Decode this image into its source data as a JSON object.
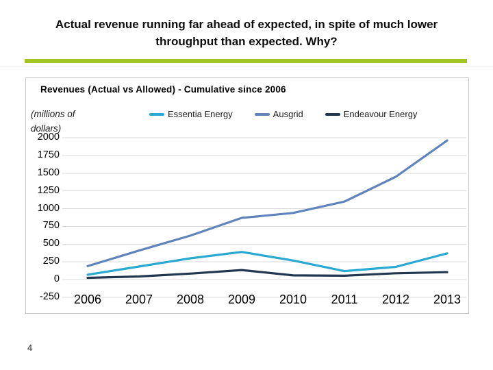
{
  "slide": {
    "title_line1": "Actual revenue running far ahead of expected, in spite of much lower",
    "title_line2": "throughput than expected. Why?",
    "accent_color": "#a4c424",
    "page_number": "4"
  },
  "chart": {
    "title": "Revenues (Actual  vs Allowed) - Cumulative since 2006",
    "unit_label_line1": "(millions of",
    "unit_label_line2": "dollars)",
    "gridline_color": "#d9d9d9",
    "border_color": "#c9c7c7"
  },
  "chart_data": {
    "type": "line",
    "title": "Revenues (Actual vs Allowed) - Cumulative since 2006",
    "ylabel": "(millions of dollars)",
    "categories": [
      "2006",
      "2007",
      "2008",
      "2009",
      "2010",
      "2011",
      "2012",
      "2013"
    ],
    "series": [
      {
        "name": "Essentia  Energy",
        "color": "#29a8d1",
        "values": [
          70,
          185,
          300,
          390,
          270,
          120,
          180,
          370
        ]
      },
      {
        "name": "Ausgrid",
        "color": "#5f84bb",
        "values": [
          190,
          410,
          620,
          870,
          940,
          1100,
          1450,
          1960
        ]
      },
      {
        "name": "Endeavour Energy",
        "color": "#20374f",
        "values": [
          25,
          45,
          85,
          135,
          60,
          55,
          90,
          105
        ]
      }
    ],
    "ylim": [
      -250,
      2000
    ],
    "yticks": [
      2000,
      1750,
      1500,
      1250,
      1000,
      750,
      500,
      250,
      0,
      -250
    ],
    "grid": true,
    "legend_position": "top"
  }
}
